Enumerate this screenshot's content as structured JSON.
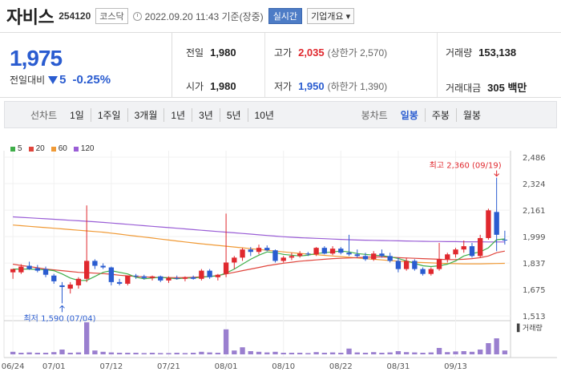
{
  "header": {
    "title": "자비스",
    "code": "254120",
    "market": "코스닥",
    "timestamp": "2022.09.20 11:43 기준(장중)",
    "realtime_label": "실시간",
    "overview_label": "기업개요 ▾"
  },
  "price": {
    "current": "1,975",
    "change_label": "전일대비",
    "change": "5",
    "change_pct": "-0.25%"
  },
  "stats": {
    "prev_close": {
      "label": "전일",
      "value": "1,980"
    },
    "high": {
      "label": "고가",
      "value": "2,035",
      "sub": "(상한가 2,570)"
    },
    "volume": {
      "label": "거래량",
      "value": "153,138"
    },
    "open": {
      "label": "시가",
      "value": "1,980"
    },
    "low": {
      "label": "저가",
      "value": "1,950",
      "sub": "(하한가 1,390)"
    },
    "amount": {
      "label": "거래대금",
      "value": "305 백만"
    }
  },
  "tabs": {
    "line_label": "선차트",
    "periods": [
      "1일",
      "1주일",
      "3개월",
      "1년",
      "3년",
      "5년",
      "10년"
    ],
    "candle_label": "봉차트",
    "candles": [
      "일봉",
      "주봉",
      "월봉"
    ],
    "active_candle": "일봉"
  },
  "colors": {
    "up": "#e0282e",
    "down": "#2a5cd0",
    "ma5": "#3fae49",
    "ma20": "#e0453c",
    "ma60": "#f09a36",
    "ma120": "#9a5ed6"
  },
  "chart_data": {
    "type": "candlestick",
    "legend": [
      "5",
      "20",
      "60",
      "120"
    ],
    "ylim": [
      1513,
      2486
    ],
    "y_ticks": [
      "2,486",
      "2,324",
      "2,161",
      "1,999",
      "1,837",
      "1,675",
      "1,513"
    ],
    "y_tick_values": [
      2486,
      2324,
      2161,
      1999,
      1837,
      1675,
      1513
    ],
    "x_tick_labels": [
      "06/24",
      "07/01",
      "07/12",
      "07/21",
      "08/01",
      "08/10",
      "08/22",
      "08/31",
      "09/13"
    ],
    "x_tick_index": [
      0,
      5,
      12,
      19,
      26,
      33,
      40,
      47,
      54
    ],
    "max_label": "최고 2,360 (09/19)",
    "min_label": "최저 1,590 (07/04)",
    "volume_label": "거래량",
    "candles": [
      {
        "o": 1780,
        "h": 1800,
        "l": 1740,
        "c": 1800
      },
      {
        "o": 1780,
        "h": 1830,
        "l": 1770,
        "c": 1815
      },
      {
        "o": 1820,
        "h": 1845,
        "l": 1795,
        "c": 1800
      },
      {
        "o": 1805,
        "h": 1825,
        "l": 1780,
        "c": 1790
      },
      {
        "o": 1800,
        "h": 1815,
        "l": 1750,
        "c": 1765
      },
      {
        "o": 1760,
        "h": 1770,
        "l": 1710,
        "c": 1725
      },
      {
        "o": 1700,
        "h": 1720,
        "l": 1590,
        "c": 1690
      },
      {
        "o": 1680,
        "h": 1720,
        "l": 1650,
        "c": 1705
      },
      {
        "o": 1700,
        "h": 1750,
        "l": 1680,
        "c": 1740
      },
      {
        "o": 1740,
        "h": 2190,
        "l": 1720,
        "c": 1850
      },
      {
        "o": 1850,
        "h": 1860,
        "l": 1800,
        "c": 1820
      },
      {
        "o": 1820,
        "h": 1835,
        "l": 1800,
        "c": 1810
      },
      {
        "o": 1810,
        "h": 1815,
        "l": 1700,
        "c": 1720
      },
      {
        "o": 1720,
        "h": 1740,
        "l": 1700,
        "c": 1710
      },
      {
        "o": 1710,
        "h": 1760,
        "l": 1700,
        "c": 1760
      },
      {
        "o": 1760,
        "h": 1770,
        "l": 1740,
        "c": 1755
      },
      {
        "o": 1755,
        "h": 1765,
        "l": 1735,
        "c": 1745
      },
      {
        "o": 1745,
        "h": 1760,
        "l": 1730,
        "c": 1755
      },
      {
        "o": 1755,
        "h": 1760,
        "l": 1720,
        "c": 1730
      },
      {
        "o": 1730,
        "h": 1755,
        "l": 1715,
        "c": 1745
      },
      {
        "o": 1745,
        "h": 1760,
        "l": 1735,
        "c": 1740
      },
      {
        "o": 1740,
        "h": 1755,
        "l": 1725,
        "c": 1750
      },
      {
        "o": 1750,
        "h": 1760,
        "l": 1735,
        "c": 1740
      },
      {
        "o": 1740,
        "h": 1800,
        "l": 1730,
        "c": 1790
      },
      {
        "o": 1790,
        "h": 1800,
        "l": 1740,
        "c": 1750
      },
      {
        "o": 1750,
        "h": 1770,
        "l": 1730,
        "c": 1765
      },
      {
        "o": 1770,
        "h": 2140,
        "l": 1750,
        "c": 1840
      },
      {
        "o": 1840,
        "h": 1880,
        "l": 1800,
        "c": 1870
      },
      {
        "o": 1870,
        "h": 1930,
        "l": 1850,
        "c": 1920
      },
      {
        "o": 1920,
        "h": 1935,
        "l": 1880,
        "c": 1905
      },
      {
        "o": 1905,
        "h": 1950,
        "l": 1890,
        "c": 1930
      },
      {
        "o": 1930,
        "h": 1945,
        "l": 1910,
        "c": 1915
      },
      {
        "o": 1915,
        "h": 1920,
        "l": 1840,
        "c": 1850
      },
      {
        "o": 1850,
        "h": 1880,
        "l": 1840,
        "c": 1870
      },
      {
        "o": 1870,
        "h": 1900,
        "l": 1855,
        "c": 1880
      },
      {
        "o": 1880,
        "h": 1910,
        "l": 1870,
        "c": 1895
      },
      {
        "o": 1895,
        "h": 1905,
        "l": 1880,
        "c": 1890
      },
      {
        "o": 1890,
        "h": 1935,
        "l": 1880,
        "c": 1930
      },
      {
        "o": 1930,
        "h": 1940,
        "l": 1890,
        "c": 1895
      },
      {
        "o": 1895,
        "h": 1940,
        "l": 1885,
        "c": 1925
      },
      {
        "o": 1925,
        "h": 1935,
        "l": 1890,
        "c": 1900
      },
      {
        "o": 1900,
        "h": 2010,
        "l": 1880,
        "c": 1890
      },
      {
        "o": 1890,
        "h": 1920,
        "l": 1870,
        "c": 1880
      },
      {
        "o": 1880,
        "h": 1900,
        "l": 1850,
        "c": 1860
      },
      {
        "o": 1860,
        "h": 1910,
        "l": 1850,
        "c": 1895
      },
      {
        "o": 1895,
        "h": 1920,
        "l": 1870,
        "c": 1880
      },
      {
        "o": 1880,
        "h": 1900,
        "l": 1840,
        "c": 1850
      },
      {
        "o": 1850,
        "h": 1870,
        "l": 1780,
        "c": 1800
      },
      {
        "o": 1800,
        "h": 1870,
        "l": 1790,
        "c": 1850
      },
      {
        "o": 1850,
        "h": 1860,
        "l": 1790,
        "c": 1800
      },
      {
        "o": 1800,
        "h": 1810,
        "l": 1760,
        "c": 1770
      },
      {
        "o": 1770,
        "h": 1810,
        "l": 1760,
        "c": 1800
      },
      {
        "o": 1800,
        "h": 1960,
        "l": 1790,
        "c": 1860
      },
      {
        "o": 1860,
        "h": 1900,
        "l": 1840,
        "c": 1890
      },
      {
        "o": 1890,
        "h": 1930,
        "l": 1870,
        "c": 1920
      },
      {
        "o": 1920,
        "h": 1975,
        "l": 1900,
        "c": 1940
      },
      {
        "o": 1940,
        "h": 1960,
        "l": 1870,
        "c": 1880
      },
      {
        "o": 1880,
        "h": 2010,
        "l": 1870,
        "c": 1990
      },
      {
        "o": 1990,
        "h": 2170,
        "l": 1980,
        "c": 2160
      },
      {
        "o": 2150,
        "h": 2360,
        "l": 1910,
        "c": 2010
      },
      {
        "o": 1980,
        "h": 2035,
        "l": 1950,
        "c": 1975
      }
    ],
    "volume_rel": [
      0.08,
      0.05,
      0.06,
      0.05,
      0.05,
      0.07,
      0.15,
      0.05,
      0.06,
      1.0,
      0.12,
      0.08,
      0.06,
      0.05,
      0.05,
      0.05,
      0.04,
      0.05,
      0.04,
      0.04,
      0.05,
      0.04,
      0.05,
      0.08,
      0.06,
      0.05,
      0.78,
      0.12,
      0.22,
      0.1,
      0.08,
      0.06,
      0.08,
      0.05,
      0.05,
      0.05,
      0.04,
      0.07,
      0.05,
      0.06,
      0.05,
      0.18,
      0.06,
      0.05,
      0.07,
      0.05,
      0.06,
      0.1,
      0.07,
      0.06,
      0.05,
      0.06,
      0.2,
      0.07,
      0.09,
      0.1,
      0.08,
      0.15,
      0.35,
      0.5,
      0.12
    ],
    "ma5": [
      1800,
      1800,
      1800,
      1797,
      1796,
      1790,
      1770,
      1745,
      1730,
      1730,
      1755,
      1780,
      1790,
      1780,
      1770,
      1750,
      1740,
      1745,
      1750,
      1745,
      1740,
      1745,
      1745,
      1750,
      1755,
      1758,
      1775,
      1800,
      1830,
      1860,
      1885,
      1905,
      1900,
      1890,
      1885,
      1880,
      1885,
      1895,
      1900,
      1905,
      1910,
      1905,
      1895,
      1890,
      1885,
      1882,
      1875,
      1865,
      1850,
      1835,
      1820,
      1815,
      1820,
      1830,
      1850,
      1880,
      1895,
      1905,
      1930,
      1980,
      1985
    ],
    "ma20": [
      1830,
      1822,
      1815,
      1808,
      1800,
      1795,
      1790,
      1785,
      1780,
      1778,
      1775,
      1772,
      1768,
      1762,
      1758,
      1755,
      1752,
      1750,
      1748,
      1748,
      1747,
      1748,
      1750,
      1752,
      1755,
      1760,
      1770,
      1780,
      1790,
      1800,
      1810,
      1820,
      1828,
      1836,
      1842,
      1848,
      1852,
      1856,
      1860,
      1864,
      1866,
      1868,
      1870,
      1872,
      1874,
      1874,
      1872,
      1870,
      1868,
      1866,
      1864,
      1862,
      1860,
      1858,
      1858,
      1860,
      1864,
      1870,
      1880,
      1900,
      1910
    ],
    "ma60": [
      2070,
      2066,
      2062,
      2058,
      2054,
      2050,
      2046,
      2042,
      2038,
      2034,
      2030,
      2026,
      2020,
      2014,
      2008,
      2002,
      1996,
      1990,
      1984,
      1978,
      1972,
      1966,
      1960,
      1955,
      1950,
      1945,
      1940,
      1935,
      1930,
      1925,
      1920,
      1915,
      1910,
      1905,
      1900,
      1896,
      1892,
      1888,
      1884,
      1880,
      1876,
      1872,
      1868,
      1864,
      1860,
      1856,
      1852,
      1848,
      1845,
      1842,
      1840,
      1838,
      1836,
      1834,
      1833,
      1832,
      1832,
      1832,
      1833,
      1834,
      1835
    ],
    "ma120": [
      2120,
      2117,
      2114,
      2111,
      2108,
      2105,
      2102,
      2099,
      2096,
      2093,
      2090,
      2086,
      2082,
      2078,
      2074,
      2070,
      2066,
      2062,
      2058,
      2054,
      2050,
      2046,
      2042,
      2038,
      2034,
      2030,
      2026,
      2022,
      2018,
      2014,
      2010,
      2006,
      2002,
      1998,
      1995,
      1992,
      1990,
      1988,
      1986,
      1984,
      1982,
      1980,
      1978,
      1977,
      1976,
      1975,
      1974,
      1973,
      1972,
      1971,
      1970,
      1969,
      1969,
      1968,
      1968,
      1967,
      1967,
      1967,
      1966,
      1966,
      1966
    ]
  }
}
